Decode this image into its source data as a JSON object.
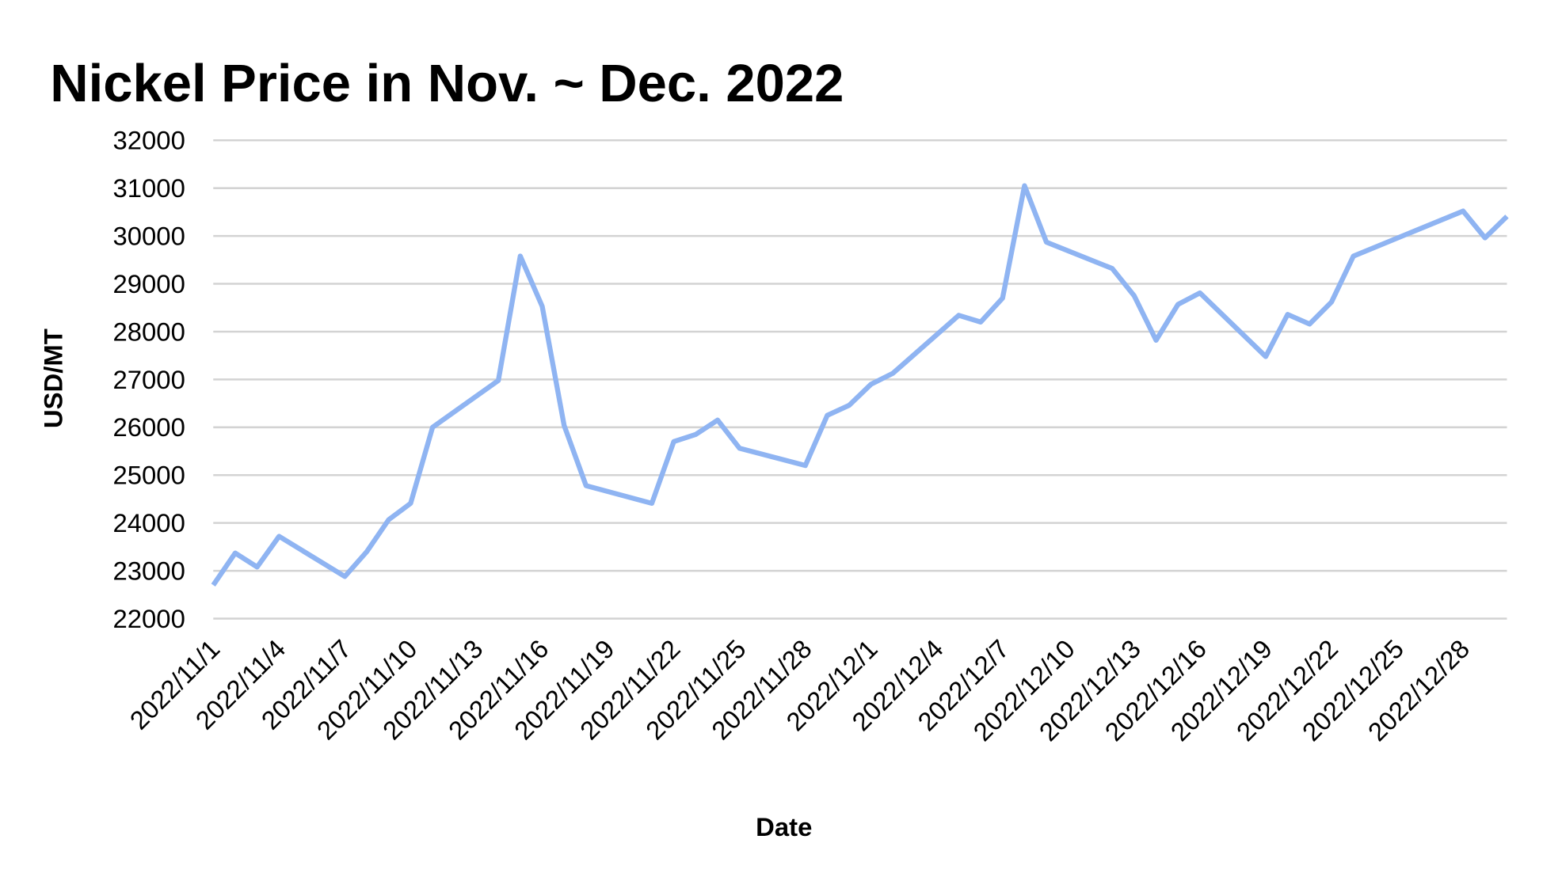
{
  "chart_data": {
    "type": "line",
    "title": "Nickel Price in Nov. ~ Dec. 2022",
    "xlabel": "Date",
    "ylabel": "USD/MT",
    "ylim": [
      22000,
      32000
    ],
    "yticks": [
      22000,
      23000,
      24000,
      25000,
      26000,
      27000,
      28000,
      29000,
      30000,
      31000,
      32000
    ],
    "xlim": [
      "2022/11/1",
      "2022/12/30"
    ],
    "xticks": [
      "2022/11/1",
      "2022/11/4",
      "2022/11/7",
      "2022/11/10",
      "2022/11/13",
      "2022/11/16",
      "2022/11/19",
      "2022/11/22",
      "2022/11/25",
      "2022/11/28",
      "2022/12/1",
      "2022/12/4",
      "2022/12/7",
      "2022/12/10",
      "2022/12/13",
      "2022/12/16",
      "2022/12/19",
      "2022/12/22",
      "2022/12/25",
      "2022/12/28"
    ],
    "grid": true,
    "line_color": "#8fb4f2",
    "grid_color": "#d3d3d3",
    "series": [
      {
        "points": [
          [
            "2022/11/1",
            22700
          ],
          [
            "2022/11/2",
            23370
          ],
          [
            "2022/11/3",
            23080
          ],
          [
            "2022/11/4",
            23720
          ],
          [
            "2022/11/7",
            22880
          ],
          [
            "2022/11/8",
            23400
          ],
          [
            "2022/11/9",
            24070
          ],
          [
            "2022/11/10",
            24410
          ],
          [
            "2022/11/11",
            26000
          ],
          [
            "2022/11/14",
            26980
          ],
          [
            "2022/11/15",
            29580
          ],
          [
            "2022/11/16",
            28530
          ],
          [
            "2022/11/17",
            26040
          ],
          [
            "2022/11/18",
            24780
          ],
          [
            "2022/11/21",
            24410
          ],
          [
            "2022/11/22",
            25700
          ],
          [
            "2022/11/23",
            25850
          ],
          [
            "2022/11/24",
            26150
          ],
          [
            "2022/11/25",
            25560
          ],
          [
            "2022/11/28",
            25200
          ],
          [
            "2022/11/29",
            26250
          ],
          [
            "2022/11/30",
            26460
          ],
          [
            "2022/12/1",
            26900
          ],
          [
            "2022/12/2",
            27130
          ],
          [
            "2022/12/5",
            28340
          ],
          [
            "2022/12/6",
            28200
          ],
          [
            "2022/12/7",
            28700
          ],
          [
            "2022/12/8",
            31050
          ],
          [
            "2022/12/9",
            29870
          ],
          [
            "2022/12/12",
            29320
          ],
          [
            "2022/12/13",
            28750
          ],
          [
            "2022/12/14",
            27820
          ],
          [
            "2022/12/15",
            28570
          ],
          [
            "2022/12/16",
            28810
          ],
          [
            "2022/12/19",
            27480
          ],
          [
            "2022/12/20",
            28360
          ],
          [
            "2022/12/21",
            28160
          ],
          [
            "2022/12/22",
            28620
          ],
          [
            "2022/12/23",
            29580
          ],
          [
            "2022/12/28",
            30520
          ],
          [
            "2022/12/29",
            29960
          ],
          [
            "2022/12/30",
            30410
          ]
        ]
      }
    ]
  }
}
